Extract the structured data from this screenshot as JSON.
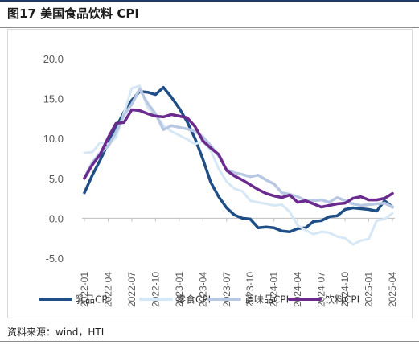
{
  "header": {
    "title": "图17 美国食品饮料 CPI"
  },
  "footer": {
    "source": "资料来源：wind，HTI"
  },
  "chart_data": {
    "type": "line",
    "title": "",
    "xlabel": "",
    "ylabel": "",
    "ylim": [
      -5,
      20
    ],
    "yticks": [
      "20.0",
      "15.0",
      "10.0",
      "5.0",
      "0.0",
      "-5.0"
    ],
    "grid": false,
    "legend_position": "bottom",
    "x": [
      "2022-01",
      "2022-02",
      "2022-03",
      "2022-04",
      "2022-05",
      "2022-06",
      "2022-07",
      "2022-08",
      "2022-09",
      "2022-10",
      "2022-11",
      "2022-12",
      "2023-01",
      "2023-02",
      "2023-03",
      "2023-04",
      "2023-05",
      "2023-06",
      "2023-07",
      "2023-08",
      "2023-09",
      "2023-10",
      "2023-11",
      "2023-12",
      "2024-01",
      "2024-02",
      "2024-03",
      "2024-04",
      "2024-05",
      "2024-06",
      "2024-07",
      "2024-08",
      "2024-09",
      "2024-10",
      "2024-11",
      "2024-12",
      "2025-01",
      "2025-02",
      "2025-03",
      "2025-04"
    ],
    "xticks": [
      "2022-01",
      "2022-04",
      "2022-07",
      "2022-10",
      "2023-01",
      "2023-04",
      "2023-07",
      "2023-10",
      "2024-01",
      "2024-04",
      "2024-07",
      "2024-10",
      "2025-01",
      "2025-04"
    ],
    "series": [
      {
        "name": "乳品CPI",
        "color": "#1f4e86",
        "width": 3.5,
        "values": [
          3.2,
          5.4,
          7.3,
          9.4,
          11.4,
          13.3,
          14.8,
          15.9,
          15.8,
          15.5,
          16.4,
          15.2,
          13.8,
          12.1,
          10.0,
          7.4,
          4.5,
          2.7,
          1.3,
          0.4,
          0.0,
          -0.1,
          -1.2,
          -1.1,
          -1.2,
          -1.6,
          -1.7,
          -1.3,
          -1.2,
          -0.4,
          -0.3,
          0.2,
          0.3,
          1.1,
          1.3,
          1.2,
          1.1,
          0.9,
          2.2,
          1.4
        ]
      },
      {
        "name": "零食CPI",
        "color": "#d6e7f5",
        "width": 3,
        "values": [
          8.2,
          8.3,
          9.5,
          9.3,
          10.1,
          13.2,
          16.3,
          16.6,
          13.8,
          13.0,
          11.6,
          10.9,
          10.4,
          9.9,
          9.3,
          9.6,
          8.5,
          6.2,
          4.6,
          3.7,
          3.4,
          2.2,
          2.0,
          1.8,
          1.6,
          1.7,
          0.8,
          -0.9,
          -1.5,
          -2.0,
          -1.7,
          -1.8,
          -2.3,
          -2.5,
          -3.3,
          -2.8,
          -2.6,
          -0.3,
          -0.1,
          0.6
        ]
      },
      {
        "name": "调味品CPI",
        "color": "#b9c8e2",
        "width": 3.5,
        "values": [
          5.1,
          7.0,
          8.2,
          9.0,
          10.8,
          12.9,
          14.3,
          16.2,
          14.4,
          13.1,
          11.1,
          11.6,
          11.4,
          11.2,
          10.9,
          10.2,
          9.1,
          7.8,
          6.1,
          5.7,
          5.5,
          5.2,
          5.4,
          4.8,
          4.3,
          3.2,
          3.0,
          2.7,
          2.2,
          2.2,
          2.3,
          2.0,
          2.6,
          2.2,
          1.8,
          1.6,
          1.7,
          1.8,
          1.9,
          1.4
        ]
      },
      {
        "name": "饮料CPI",
        "color": "#6a2a8e",
        "width": 3.5,
        "values": [
          5.0,
          6.7,
          8.0,
          10.1,
          11.9,
          12.0,
          13.6,
          13.5,
          13.1,
          12.8,
          12.7,
          13.0,
          12.8,
          12.6,
          11.5,
          9.7,
          8.8,
          8.0,
          6.0,
          5.3,
          4.8,
          4.2,
          3.6,
          3.1,
          2.8,
          2.6,
          2.9,
          2.0,
          2.2,
          1.8,
          1.4,
          1.6,
          1.8,
          1.9,
          2.5,
          2.7,
          2.3,
          2.3,
          2.5,
          3.1
        ]
      }
    ]
  }
}
